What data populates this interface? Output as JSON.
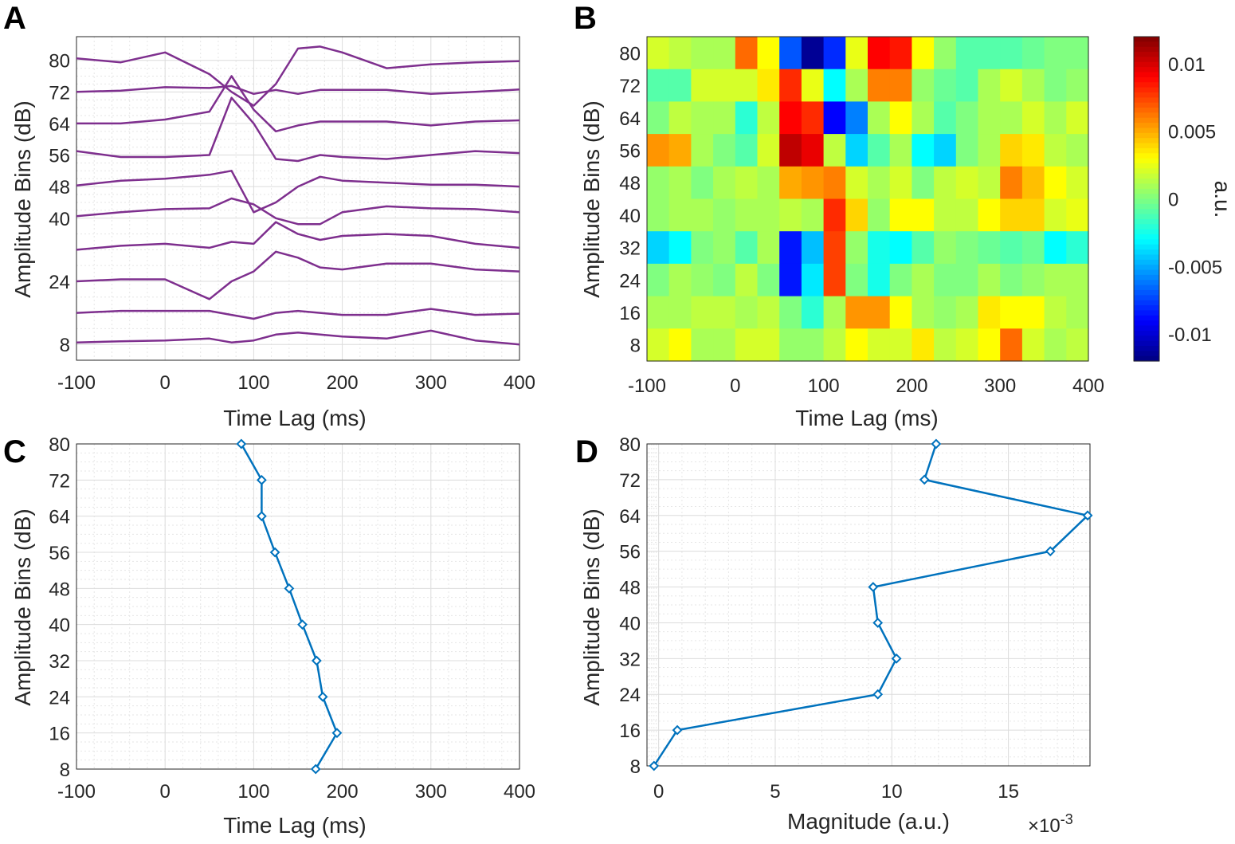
{
  "panel_letters": [
    "A",
    "B",
    "C",
    "D"
  ],
  "chart_data": [
    {
      "panel": "A",
      "type": "line",
      "xlabel": "Time Lag (ms)",
      "ylabel": "Amplitude Bins (dB)",
      "xlim": [
        -100,
        400
      ],
      "x_ticks": [
        "-100",
        "0",
        "100",
        "200",
        "300",
        "400"
      ],
      "y_tick_labels": [
        "80",
        "72",
        "64",
        "56",
        "48",
        "40",
        "24",
        "8"
      ],
      "y_tick_offsets": [
        80,
        72,
        64,
        56,
        48,
        40,
        24,
        8
      ],
      "line_color": "#7e2f8e",
      "grid": true,
      "x": [
        -100,
        -50,
        0,
        50,
        75,
        100,
        125,
        150,
        175,
        200,
        250,
        300,
        350,
        400
      ],
      "series": [
        {
          "offset": 80,
          "values": [
            80.5,
            79.5,
            82,
            76.5,
            72,
            68.5,
            74,
            83,
            83.5,
            82,
            78,
            79,
            79.5,
            79.8
          ]
        },
        {
          "offset": 72,
          "values": [
            72,
            72.3,
            73.2,
            73,
            73.5,
            71.5,
            72.5,
            71.5,
            72.5,
            72.5,
            72.5,
            71.5,
            72,
            72.6
          ]
        },
        {
          "offset": 64,
          "values": [
            64,
            64,
            65,
            67,
            76,
            67.5,
            62,
            63.5,
            64.5,
            64.5,
            64.5,
            63.5,
            64.5,
            64.8
          ]
        },
        {
          "offset": 56,
          "values": [
            57,
            55.5,
            55.5,
            56,
            70.5,
            64,
            55,
            54.5,
            56,
            55.5,
            55,
            56,
            57,
            56.5
          ]
        },
        {
          "offset": 48,
          "values": [
            48.3,
            49.5,
            50,
            51,
            52,
            41.5,
            44,
            48,
            50.5,
            49.5,
            49,
            48.5,
            48.5,
            48
          ]
        },
        {
          "offset": 40,
          "values": [
            40.5,
            41.5,
            42.3,
            42.5,
            45,
            43.5,
            40,
            38.5,
            38.5,
            41.5,
            43,
            42.5,
            42.3,
            41.5
          ]
        },
        {
          "offset": 32,
          "values": [
            32,
            33,
            33.5,
            32.5,
            34,
            33.5,
            39,
            36,
            34.5,
            35.5,
            36,
            35.5,
            33.5,
            32.5
          ]
        },
        {
          "offset": 24,
          "values": [
            24,
            24.5,
            24.5,
            19.5,
            24,
            26.5,
            31.5,
            30,
            27.5,
            27,
            28.5,
            28.5,
            27,
            26.5
          ]
        },
        {
          "offset": 16,
          "values": [
            16,
            16.5,
            16.5,
            16.5,
            15.5,
            14.5,
            16,
            16.5,
            16,
            15.5,
            15.5,
            17,
            15.5,
            15.8
          ]
        },
        {
          "offset": 8,
          "values": [
            8.5,
            8.8,
            9,
            9.5,
            8.5,
            9,
            10.5,
            11,
            10.5,
            10,
            9.5,
            11.5,
            9,
            8
          ]
        }
      ]
    },
    {
      "panel": "B",
      "type": "heatmap",
      "xlabel": "Time Lag (ms)",
      "ylabel": "Amplitude Bins (dB)",
      "xlim": [
        -100,
        400
      ],
      "x_ticks": [
        "-100",
        "0",
        "100",
        "200",
        "300",
        "400"
      ],
      "y_ticks": [
        "80",
        "72",
        "64",
        "56",
        "48",
        "40",
        "32",
        "24",
        "16",
        "8"
      ],
      "rows": [
        80,
        72,
        64,
        56,
        48,
        40,
        32,
        24,
        16,
        8
      ],
      "x_centers": [
        -87.5,
        -62.5,
        -37.5,
        -12.5,
        12.5,
        37.5,
        62.5,
        87.5,
        112.5,
        137.5,
        162.5,
        187.5,
        212.5,
        237.5,
        262.5,
        287.5,
        312.5,
        337.5,
        362.5,
        387.5
      ],
      "values": [
        [
          0.002,
          0.0015,
          0.001,
          0.001,
          0.0065,
          0.003,
          -0.007,
          -0.0115,
          -0.008,
          0.0025,
          0.009,
          0.0085,
          0.003,
          0.0005,
          -0.001,
          -0.001,
          -0.001,
          -0.0005,
          0,
          0
        ],
        [
          -0.001,
          -0.001,
          0.002,
          0.002,
          0.002,
          0.0035,
          0.008,
          0.0025,
          -0.003,
          0.001,
          0.006,
          0.006,
          0.0005,
          -0.0005,
          -0.001,
          0.001,
          0.002,
          0.001,
          0,
          0.0005
        ],
        [
          0,
          0.0015,
          0.001,
          0.001,
          -0.002,
          0.0015,
          0.009,
          0.008,
          -0.009,
          -0.006,
          0.001,
          0.003,
          0.001,
          -0.001,
          0,
          0.001,
          0.001,
          0.002,
          0.001,
          0.002
        ],
        [
          0.0055,
          0.005,
          0.001,
          0,
          -0.001,
          0.002,
          0.0105,
          0.0095,
          0.0015,
          -0.004,
          -0.001,
          0.001,
          -0.003,
          -0.004,
          0,
          0.001,
          0.004,
          0.0035,
          0.0015,
          0.001
        ],
        [
          0.0005,
          0.001,
          0,
          0.001,
          0.0015,
          0.001,
          0.005,
          0.0055,
          0.006,
          0.002,
          0.001,
          0.002,
          0,
          0.0015,
          0.002,
          0.0015,
          0.006,
          0.0045,
          0.003,
          0.002
        ],
        [
          0.0005,
          0.001,
          0.001,
          0.0005,
          0.001,
          0.001,
          0.0015,
          0.001,
          0.008,
          0.004,
          0.0005,
          0.003,
          0.003,
          0.0015,
          0.0015,
          0.003,
          0.004,
          0.004,
          0.002,
          0.0025
        ],
        [
          -0.004,
          -0.003,
          0,
          0.0005,
          -0.001,
          0.001,
          -0.0085,
          -0.0045,
          0.0075,
          0.0005,
          -0.0025,
          -0.003,
          -0.001,
          0.0005,
          0,
          -0.0005,
          -0.001,
          -0.0005,
          -0.003,
          -0.002
        ],
        [
          0,
          0.001,
          0.0005,
          0,
          0.0015,
          0,
          -0.0085,
          -0.0035,
          0.0075,
          0,
          -0.0025,
          0,
          0.001,
          0,
          0,
          0.001,
          0,
          0.0005,
          0.001,
          0.001
        ],
        [
          0.001,
          0.001,
          0.0015,
          0.0015,
          0.001,
          0.0015,
          0,
          -0.002,
          0.001,
          0.0055,
          0.0055,
          0.003,
          0.001,
          0.0005,
          0.001,
          0.0035,
          0.003,
          0.003,
          0.0015,
          0.001
        ],
        [
          0.002,
          0.003,
          0.001,
          0.001,
          0.002,
          0.002,
          0.0005,
          0.0005,
          0.0015,
          0.003,
          0.002,
          0.002,
          0.0035,
          0.0015,
          0.002,
          0.003,
          0.0065,
          0.002,
          0.001,
          0.0015
        ]
      ],
      "clim": [
        -0.012,
        0.012
      ],
      "colorbar_ticks": [
        "0.01",
        "0.005",
        "0",
        "-0.005",
        "-0.01"
      ],
      "colorbar_tick_values": [
        0.01,
        0.005,
        0,
        -0.005,
        -0.01
      ],
      "colorbar_label": "a.u.",
      "colormap": "jet"
    },
    {
      "panel": "C",
      "type": "line",
      "xlabel": "Time Lag (ms)",
      "ylabel": "Amplitude Bins (dB)",
      "xlim": [
        -100,
        400
      ],
      "ylim": [
        8,
        80
      ],
      "x_ticks": [
        "-100",
        "0",
        "100",
        "200",
        "300",
        "400"
      ],
      "y_ticks": [
        "80",
        "72",
        "64",
        "56",
        "48",
        "40",
        "32",
        "24",
        "16",
        "8"
      ],
      "line_color": "#0072bd",
      "grid": true,
      "points": {
        "x": [
          86,
          109,
          109,
          124,
          140,
          155,
          171,
          178,
          194,
          170
        ],
        "y": [
          80,
          72,
          64,
          56,
          48,
          40,
          32,
          24,
          16,
          8
        ]
      }
    },
    {
      "panel": "D",
      "type": "line",
      "xlabel": "Magnitude (a.u.)",
      "ylabel": "Amplitude Bins (dB)",
      "xlim": [
        -0.0005,
        0.0185
      ],
      "ylim": [
        8,
        80
      ],
      "x_ticks": [
        "0",
        "5",
        "10",
        "15"
      ],
      "x_tick_values": [
        0,
        0.005,
        0.01,
        0.015
      ],
      "x_exponent": "×10",
      "x_exponent_power": "-3",
      "y_ticks": [
        "80",
        "72",
        "64",
        "56",
        "48",
        "40",
        "32",
        "24",
        "16",
        "8"
      ],
      "line_color": "#0072bd",
      "grid": true,
      "points": {
        "x": [
          0.0119,
          0.0114,
          0.0184,
          0.0168,
          0.0092,
          0.0094,
          0.0102,
          0.0094,
          0.0008,
          -0.0002
        ],
        "y": [
          80,
          72,
          64,
          56,
          48,
          40,
          32,
          24,
          16,
          8
        ]
      }
    }
  ]
}
